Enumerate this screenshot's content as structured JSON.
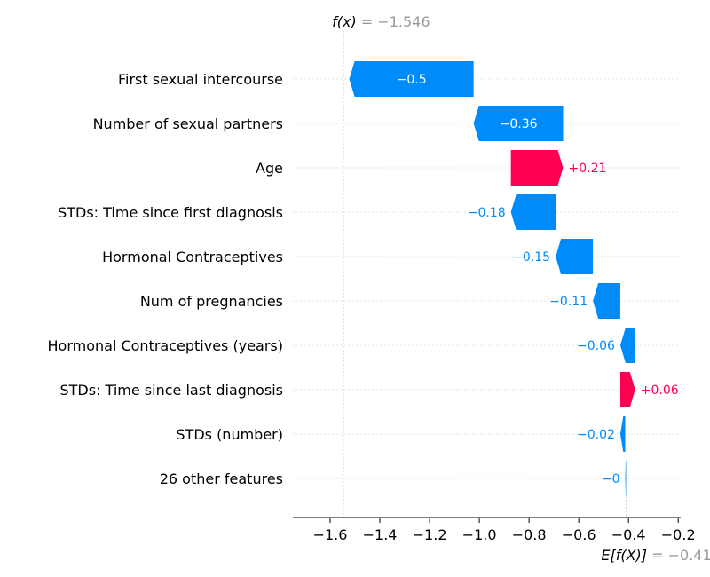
{
  "chart_data": {
    "type": "waterfall",
    "title": "",
    "xlabel": "",
    "ylabel": "",
    "xlim": [
      -1.75,
      -0.19
    ],
    "xticks": [
      -1.6,
      -1.4,
      -1.2,
      -1.0,
      -0.8,
      -0.6,
      -0.4,
      -0.2
    ],
    "xtick_labels": [
      "−1.6",
      "−1.4",
      "−1.2",
      "−1.0",
      "−0.8",
      "−0.6",
      "−0.4",
      "−0.2"
    ],
    "base_value": -0.41,
    "base_label": {
      "name": "E[f(X)]",
      "value_text": "= −0.41"
    },
    "output_value": -1.546,
    "output_label": {
      "name": "f(x)",
      "value_text": "= −1.546"
    },
    "features": [
      {
        "name": "First sexual intercourse",
        "value": -0.5,
        "label": "−0.5"
      },
      {
        "name": "Number of sexual partners",
        "value": -0.36,
        "label": "−0.36"
      },
      {
        "name": "Age",
        "value": 0.21,
        "label": "+0.21"
      },
      {
        "name": "STDs: Time since first diagnosis",
        "value": -0.18,
        "label": "−0.18"
      },
      {
        "name": "Hormonal Contraceptives",
        "value": -0.15,
        "label": "−0.15"
      },
      {
        "name": "Num of pregnancies",
        "value": -0.11,
        "label": "−0.11"
      },
      {
        "name": "Hormonal Contraceptives (years)",
        "value": -0.06,
        "label": "−0.06"
      },
      {
        "name": "STDs: Time since last diagnosis",
        "value": 0.06,
        "label": "+0.06"
      },
      {
        "name": "STDs (number)",
        "value": -0.02,
        "label": "−0.02"
      },
      {
        "name": "26 other features",
        "value": -0.003,
        "label": "−0"
      }
    ],
    "colors": {
      "positive": "#ff0051",
      "negative": "#008bfb",
      "muted_text": "#999999",
      "grid": "#cccccc"
    },
    "grid": true,
    "legend": "none"
  }
}
